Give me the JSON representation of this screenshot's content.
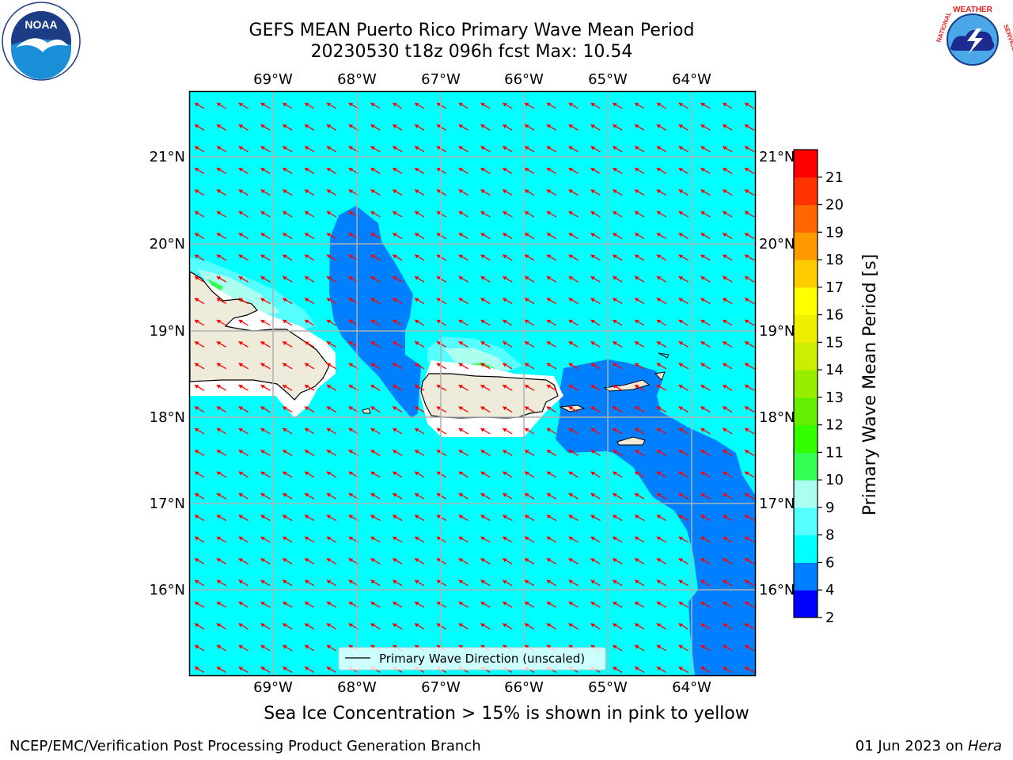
{
  "header": {
    "title_line1": "GEFS MEAN Puerto Rico Primary Wave Mean Period",
    "title_line2": "20230530 t18z 096h fcst   Max: 10.54"
  },
  "logos": {
    "left": {
      "name": "NOAA",
      "ring_text": "NATIONAL OCEANIC AND ATMOSPHERIC ADMINISTRATION · U.S. DEPARTMENT OF COMMERCE"
    },
    "right": {
      "name": "NATIONAL WEATHER SERVICE"
    }
  },
  "map": {
    "longitude_labels": [
      "69°W",
      "68°W",
      "67°W",
      "66°W",
      "65°W",
      "64°W"
    ],
    "latitude_labels": [
      "21°N",
      "20°N",
      "19°N",
      "18°N",
      "17°N",
      "16°N"
    ],
    "legend_label": "Primary Wave Direction (unscaled)",
    "arrow_direction": "toward west-northwest",
    "colors": {
      "ocean_6_8": "#00ffff",
      "band_4_6": "#0080ff",
      "band_8_9": "#55ffff",
      "band_9_10": "#aaffee",
      "band_10_11": "#33ff55",
      "land": "#efebdb",
      "arrows": "#ff0000",
      "gridlines": "#b0b0b0"
    }
  },
  "colorbar": {
    "label": "Primary Wave Mean Period [s]",
    "ticks": [
      "2",
      "4",
      "6",
      "8",
      "9",
      "10",
      "11",
      "12",
      "13",
      "14",
      "15",
      "16",
      "17",
      "18",
      "19",
      "20",
      "21"
    ],
    "colors": [
      "#0000ff",
      "#0080ff",
      "#00ffff",
      "#55ffff",
      "#aaffee",
      "#33ff55",
      "#33ff00",
      "#66ee00",
      "#99ee00",
      "#ccee00",
      "#eeee00",
      "#ffff00",
      "#ffcc00",
      "#ff9900",
      "#ff6600",
      "#ff3300",
      "#ff0000"
    ]
  },
  "subtitle": "Sea Ice Concentration > 15% is shown in pink to yellow",
  "footer": {
    "left": "NCEP/EMC/Verification Post Processing Product Generation Branch",
    "right_date": "01 Jun 2023 on ",
    "right_machine": "Hera"
  }
}
